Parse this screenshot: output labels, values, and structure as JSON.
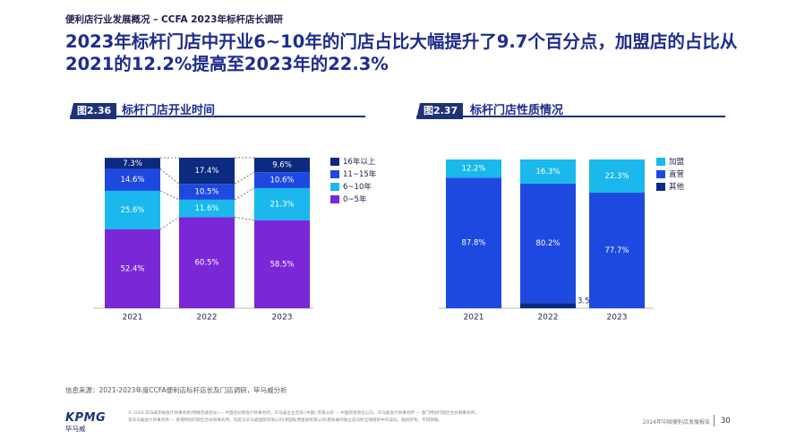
{
  "header": {
    "breadcrumb": "便利店行业发展概况 – CCFA 2023年标杆店长调研",
    "headline": "2023年标杆门店中开业6~10年的门店占比大幅提升了9.7个百分点，加盟店的占比从2021的12.2%提高至2023年的22.3%"
  },
  "figures": [
    {
      "tag": "图2.36",
      "title": "标杆门店开业时间"
    },
    {
      "tag": "图2.37",
      "title": "标杆门店性质情况"
    }
  ],
  "chart_data": [
    {
      "type": "bar",
      "stacked": true,
      "title": "标杆门店开业时间",
      "categories": [
        "2021",
        "2022",
        "2023"
      ],
      "unit": "%",
      "series": [
        {
          "name": "0~5年",
          "color": "#7a27d8",
          "values": [
            52.4,
            60.5,
            58.5
          ],
          "labels": [
            "52.4%",
            "60.5%",
            "58.5%"
          ]
        },
        {
          "name": "6~10年",
          "color": "#1ab8ec",
          "values": [
            25.6,
            11.6,
            21.3
          ],
          "labels": [
            "25.6%",
            "11.6%",
            "21.3%"
          ]
        },
        {
          "name": "11~15年",
          "color": "#1e49e0",
          "values": [
            14.6,
            10.5,
            10.6
          ],
          "labels": [
            "14.6%",
            "10.5%",
            "10.6%"
          ]
        },
        {
          "name": "16年以上",
          "color": "#0c2a80",
          "values": [
            7.3,
            17.4,
            9.6
          ],
          "labels": [
            "7.3%",
            "17.4%",
            "9.6%"
          ]
        }
      ],
      "legend_order": [
        "16年以上",
        "11~15年",
        "6~10年",
        "0~5年"
      ],
      "ylim": [
        0,
        100
      ]
    },
    {
      "type": "bar",
      "stacked": true,
      "title": "标杆门店性质情况",
      "categories": [
        "2021",
        "2022",
        "2023"
      ],
      "unit": "%",
      "series": [
        {
          "name": "其他",
          "color": "#0c2a80",
          "values": [
            0,
            3.5,
            0
          ],
          "labels": [
            "",
            "3.5%",
            ""
          ]
        },
        {
          "name": "直营",
          "color": "#1e49e0",
          "values": [
            87.8,
            80.2,
            77.7
          ],
          "labels": [
            "87.8%",
            "80.2%",
            "77.7%"
          ]
        },
        {
          "name": "加盟",
          "color": "#1ab8ec",
          "values": [
            12.2,
            16.3,
            22.3
          ],
          "labels": [
            "12.2%",
            "16.3%",
            "22.3%"
          ]
        }
      ],
      "legend_order": [
        "加盟",
        "直营",
        "其他"
      ],
      "ylim": [
        0,
        100
      ]
    }
  ],
  "footer": {
    "source": "信息来源：2021-2023年度CCFA便利店标杆店长及门店调研，毕马威分析",
    "note_line1": "© 2024 毕马威华振会计师事务所(特殊普通合伙) — 中国合伙制会计师事务所，毕马威企业咨询 (中国) 有限公司 — 中国有限责任公司，毕马威会计师事务所 — 澳门特别行政区合伙制事务所，",
    "note_line2": "及毕马威会计师事务所 — 香港特别行政区合伙制事务所，均是与毕马威国际有限公司(英国私营担保有限公司)相关联的独立成员所全球组织中的成员。版权所有，不得转载。",
    "logo_word": "KPMG",
    "logo_cn": "毕马威",
    "report_name": "2024年中国便利店发展报告",
    "page_number": "30"
  }
}
